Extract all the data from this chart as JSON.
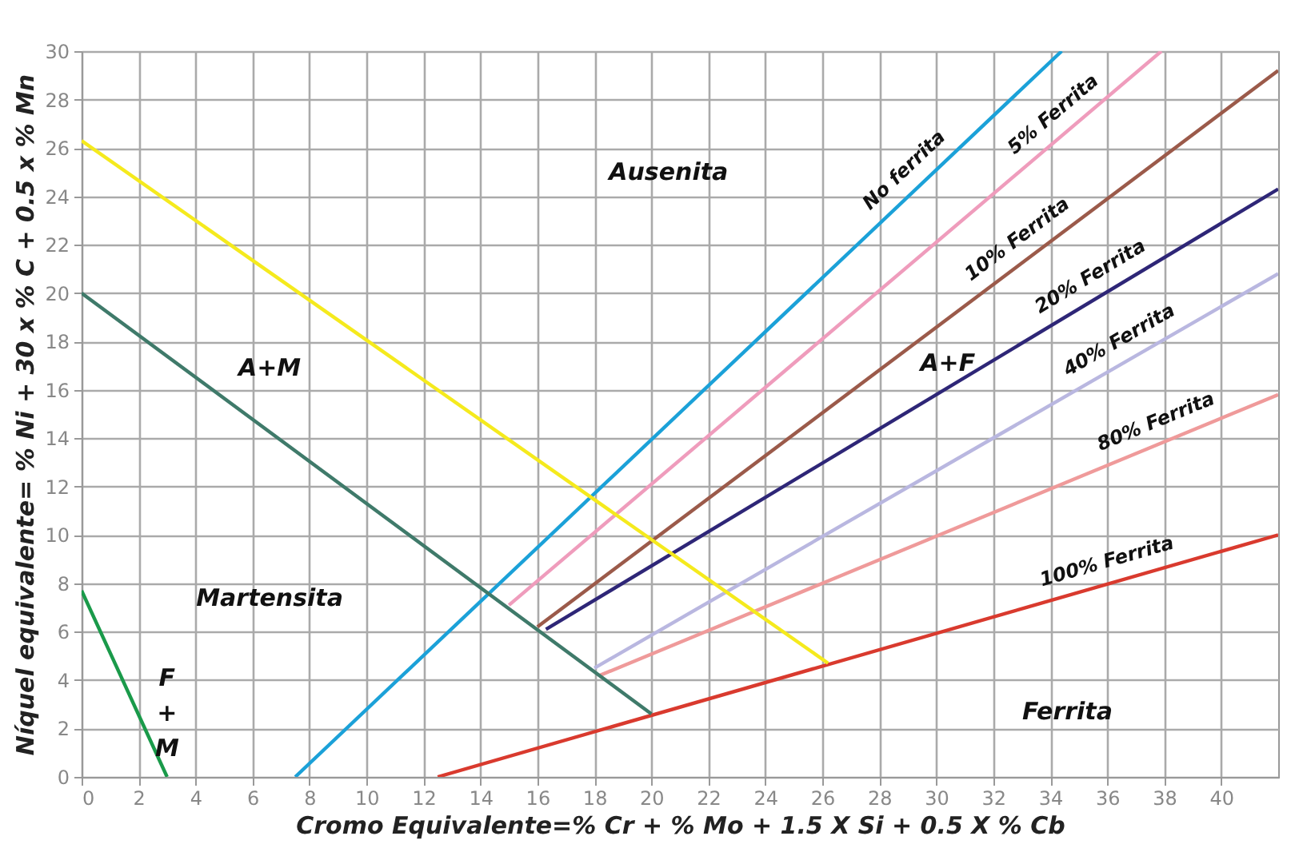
{
  "chart_data": {
    "type": "line",
    "xlabel": "Cromo Equivalente=% Cr + % Mo + 1.5 X Si + 0.5 X % Cb",
    "ylabel": "Níquel equivalente= % Ni + 30 x % C + 0.5 x % Mn",
    "xlim": [
      0,
      42
    ],
    "ylim": [
      0,
      30
    ],
    "xticks": [
      0,
      2,
      4,
      6,
      8,
      10,
      12,
      14,
      16,
      18,
      20,
      22,
      24,
      26,
      28,
      30,
      32,
      34,
      36,
      38,
      40
    ],
    "yticks": [
      0,
      2,
      4,
      6,
      8,
      10,
      12,
      14,
      16,
      18,
      20,
      22,
      24,
      26,
      28,
      30
    ],
    "grid": true,
    "legend": false,
    "marker": "none",
    "line_style": "solid",
    "series": [
      {
        "name": "No ferrita",
        "color": "#1ba1d8",
        "x": [
          7.5,
          34.4
        ],
        "values": [
          0,
          30
        ]
      },
      {
        "name": "5% Ferrita",
        "color": "#ef9cbc",
        "x": [
          15,
          37.9
        ],
        "values": [
          7.1,
          30
        ]
      },
      {
        "name": "10% Ferrita",
        "color": "#9b5a4a",
        "x": [
          16,
          42
        ],
        "values": [
          6.2,
          29.2
        ]
      },
      {
        "name": "20% Ferrita",
        "color": "#2e2677",
        "x": [
          16.3,
          42
        ],
        "values": [
          6.1,
          24.3
        ]
      },
      {
        "name": "40% Ferrita",
        "color": "#b9b7e0",
        "x": [
          18,
          42
        ],
        "values": [
          4.5,
          20.8
        ]
      },
      {
        "name": "80% Ferrita",
        "color": "#ef9a9a",
        "x": [
          18.2,
          42
        ],
        "values": [
          4.2,
          15.8
        ]
      },
      {
        "name": "100% Ferrita",
        "color": "#d93a2e",
        "x": [
          12.5,
          42
        ],
        "values": [
          0,
          10
        ]
      },
      {
        "color": "#f5ea1d",
        "x": [
          0,
          26.2
        ],
        "values": [
          26.3,
          4.7
        ]
      },
      {
        "color": "#3f7a6a",
        "x": [
          0,
          20
        ],
        "values": [
          20,
          2.6
        ]
      },
      {
        "color": "#1a9a4a",
        "x": [
          0,
          3
        ],
        "values": [
          7.7,
          0
        ]
      }
    ],
    "annotations": [
      "Ausenita",
      "A+M",
      "Martensita",
      "F\n+\nM",
      "A+F",
      "Ferrita"
    ]
  }
}
